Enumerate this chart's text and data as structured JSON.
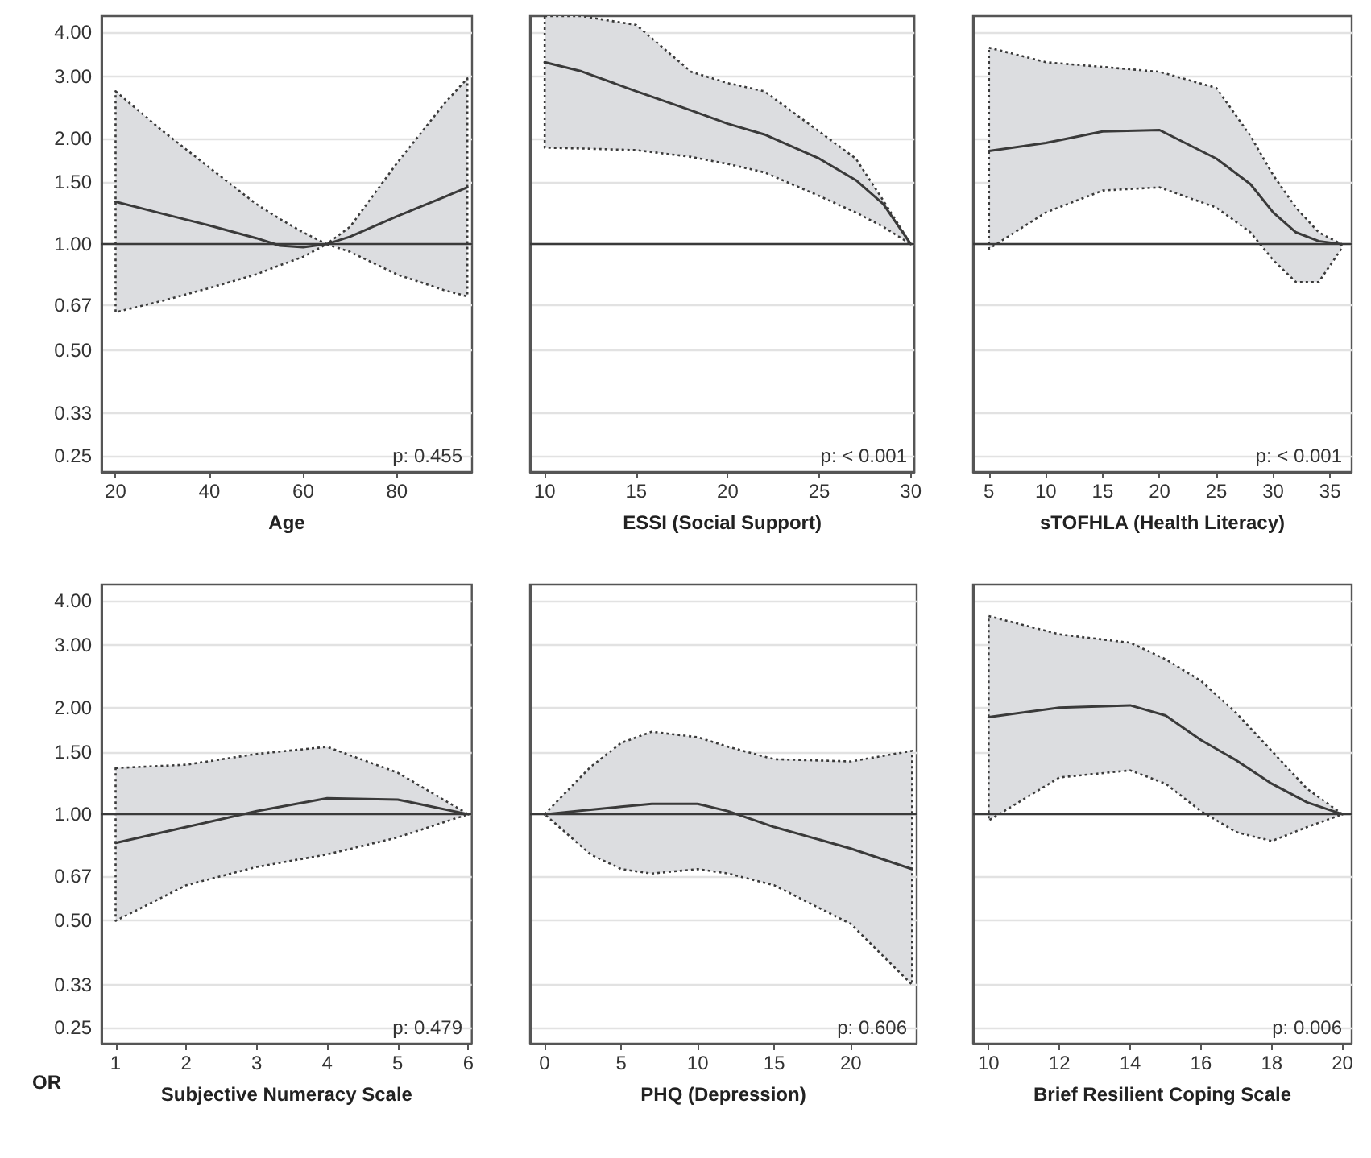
{
  "chart_data": [
    {
      "type": "line",
      "xlabel": "Age",
      "x": [
        20,
        30,
        40,
        50,
        55,
        60,
        65,
        70,
        80,
        90,
        95
      ],
      "xlim": [
        17,
        96
      ],
      "xticks": [
        20,
        40,
        60,
        80
      ],
      "ylim": [
        0.225,
        4.45
      ],
      "yticks": [
        {
          "value": 4,
          "label": "4.00"
        },
        {
          "value": 3,
          "label": "3.00"
        },
        {
          "value": 2,
          "label": "2.00"
        },
        {
          "value": 1.5,
          "label": "1.50"
        },
        {
          "value": 1,
          "label": "1.00"
        },
        0.67,
        {
          "value": 0.5,
          "label": "0.50"
        },
        0.33,
        0.25
      ],
      "log": "y",
      "grid": "y",
      "series": [
        {
          "color": "#3a3a3a",
          "values": [
            1.32,
            1.22,
            1.13,
            1.04,
            0.99,
            0.98,
            1.0,
            1.05,
            1.2,
            1.36,
            1.45
          ],
          "lower": [
            0.64,
            0.69,
            0.75,
            0.82,
            0.87,
            0.92,
            1.0,
            0.95,
            0.82,
            0.74,
            0.71
          ],
          "upper": [
            2.72,
            2.1,
            1.65,
            1.3,
            1.18,
            1.08,
            1.0,
            1.12,
            1.7,
            2.5,
            2.96
          ]
        }
      ],
      "ref_lines": [
        {
          "axis": "y",
          "value": 1,
          "color": "#3a3a3a"
        }
      ],
      "annotations": [
        "p: 0.455"
      ]
    },
    {
      "type": "line",
      "xlabel": "ESSI (Social Support)",
      "x": [
        10,
        12,
        15,
        18,
        20,
        22,
        25,
        27,
        28.5,
        30
      ],
      "xlim": [
        9.2,
        30.2
      ],
      "xticks": [
        10,
        15,
        20,
        25,
        30
      ],
      "ylim": [
        0.225,
        4.45
      ],
      "yticks": [
        4,
        3,
        2,
        1.5,
        1,
        0.67,
        0.5,
        0.33,
        0.25
      ],
      "log": "y",
      "grid": "y",
      "tick_labels": "x",
      "series": [
        {
          "color": "#3a3a3a",
          "values": [
            3.29,
            3.1,
            2.72,
            2.4,
            2.2,
            2.05,
            1.75,
            1.52,
            1.3,
            1.0
          ],
          "lower": [
            1.88,
            1.87,
            1.85,
            1.77,
            1.69,
            1.6,
            1.37,
            1.23,
            1.12,
            1.0
          ],
          "upper": [
            4.45,
            4.45,
            4.2,
            3.09,
            2.87,
            2.72,
            2.09,
            1.75,
            1.33,
            1.0
          ]
        }
      ],
      "ref_lines": [
        {
          "axis": "y",
          "value": 1,
          "color": "#3a3a3a"
        }
      ],
      "annotations": [
        "p: < 0.001"
      ]
    },
    {
      "type": "line",
      "xlabel": "sTOFHLA (Health Literacy)",
      "x": [
        5,
        10,
        15,
        20,
        25,
        28,
        30,
        32,
        34,
        36
      ],
      "xlim": [
        3.6,
        36.9
      ],
      "xticks": [
        5,
        10,
        15,
        20,
        25,
        30,
        35
      ],
      "ylim": [
        0.225,
        4.45
      ],
      "yticks": [
        4,
        3,
        2,
        1.5,
        1,
        0.67,
        0.5,
        0.33,
        0.25
      ],
      "log": "y",
      "grid": "y",
      "tick_labels": "x",
      "series": [
        {
          "color": "#3a3a3a",
          "values": [
            1.84,
            1.94,
            2.09,
            2.11,
            1.75,
            1.48,
            1.23,
            1.08,
            1.02,
            1.0
          ],
          "lower": [
            0.97,
            1.23,
            1.42,
            1.45,
            1.27,
            1.08,
            0.9,
            0.78,
            0.78,
            0.97
          ],
          "upper": [
            3.62,
            3.29,
            3.19,
            3.09,
            2.78,
            2.03,
            1.57,
            1.27,
            1.08,
            1.0
          ]
        }
      ],
      "ref_lines": [
        {
          "axis": "y",
          "value": 1,
          "color": "#3a3a3a"
        }
      ],
      "annotations": [
        "p: < 0.001"
      ]
    },
    {
      "type": "line",
      "xlabel": "Subjective Numeracy Scale",
      "ylabel": "OR",
      "x": [
        1,
        2,
        3,
        4,
        5,
        6
      ],
      "xlim": [
        0.8,
        6.05
      ],
      "xticks": [
        1,
        2,
        3,
        4,
        5,
        6
      ],
      "ylim": [
        0.225,
        4.45
      ],
      "yticks": [
        {
          "value": 4,
          "label": "4.00"
        },
        {
          "value": 3,
          "label": "3.00"
        },
        {
          "value": 2,
          "label": "2.00"
        },
        {
          "value": 1.5,
          "label": "1.50"
        },
        {
          "value": 1,
          "label": "1.00"
        },
        0.67,
        {
          "value": 0.5,
          "label": "0.50"
        },
        0.33,
        0.25
      ],
      "log": "y",
      "grid": "y",
      "series": [
        {
          "color": "#3a3a3a",
          "values": [
            0.83,
            0.92,
            1.02,
            1.11,
            1.1,
            1.0
          ],
          "lower": [
            0.5,
            0.63,
            0.71,
            0.77,
            0.86,
            1.0
          ],
          "upper": [
            1.35,
            1.38,
            1.48,
            1.55,
            1.31,
            1.0
          ]
        }
      ],
      "ref_lines": [
        {
          "axis": "y",
          "value": 1,
          "color": "#3a3a3a"
        }
      ],
      "annotations": [
        "p: 0.479"
      ]
    },
    {
      "type": "line",
      "xlabel": "PHQ (Depression)",
      "x": [
        0,
        3,
        5,
        7,
        10,
        12,
        15,
        20,
        24
      ],
      "xlim": [
        -0.95,
        24.3
      ],
      "xticks": [
        0,
        5,
        10,
        15,
        20
      ],
      "ylim": [
        0.225,
        4.45
      ],
      "yticks": [
        4,
        3,
        2,
        1.5,
        1,
        0.67,
        0.5,
        0.33,
        0.25
      ],
      "log": "y",
      "grid": "y",
      "tick_labels": "x",
      "series": [
        {
          "color": "#3a3a3a",
          "values": [
            1.0,
            1.03,
            1.05,
            1.07,
            1.07,
            1.02,
            0.92,
            0.8,
            0.7
          ],
          "lower": [
            1.0,
            0.77,
            0.7,
            0.68,
            0.7,
            0.68,
            0.63,
            0.49,
            0.33
          ],
          "upper": [
            1.0,
            1.36,
            1.59,
            1.71,
            1.65,
            1.55,
            1.43,
            1.41,
            1.51
          ]
        }
      ],
      "ref_lines": [
        {
          "axis": "y",
          "value": 1,
          "color": "#3a3a3a"
        }
      ],
      "annotations": [
        "p: 0.606"
      ]
    },
    {
      "type": "line",
      "xlabel": "Brief Resilient Coping Scale",
      "x": [
        10,
        12,
        14,
        15,
        16,
        17,
        18,
        19,
        20
      ],
      "xlim": [
        9.56,
        20.26
      ],
      "xticks": [
        10,
        12,
        14,
        16,
        18,
        20
      ],
      "ylim": [
        0.225,
        4.45
      ],
      "yticks": [
        4,
        3,
        2,
        1.5,
        1,
        0.67,
        0.5,
        0.33,
        0.25
      ],
      "log": "y",
      "grid": "y",
      "tick_labels": "x",
      "series": [
        {
          "color": "#3a3a3a",
          "values": [
            1.88,
            2.0,
            2.03,
            1.9,
            1.62,
            1.42,
            1.22,
            1.08,
            1.0
          ],
          "lower": [
            0.96,
            1.27,
            1.33,
            1.22,
            1.02,
            0.89,
            0.84,
            0.92,
            1.0
          ],
          "upper": [
            3.63,
            3.22,
            3.05,
            2.74,
            2.38,
            1.93,
            1.51,
            1.18,
            1.0
          ]
        }
      ],
      "ref_lines": [
        {
          "axis": "y",
          "value": 1,
          "color": "#3a3a3a"
        }
      ],
      "annotations": [
        "p: 0.006"
      ]
    }
  ]
}
